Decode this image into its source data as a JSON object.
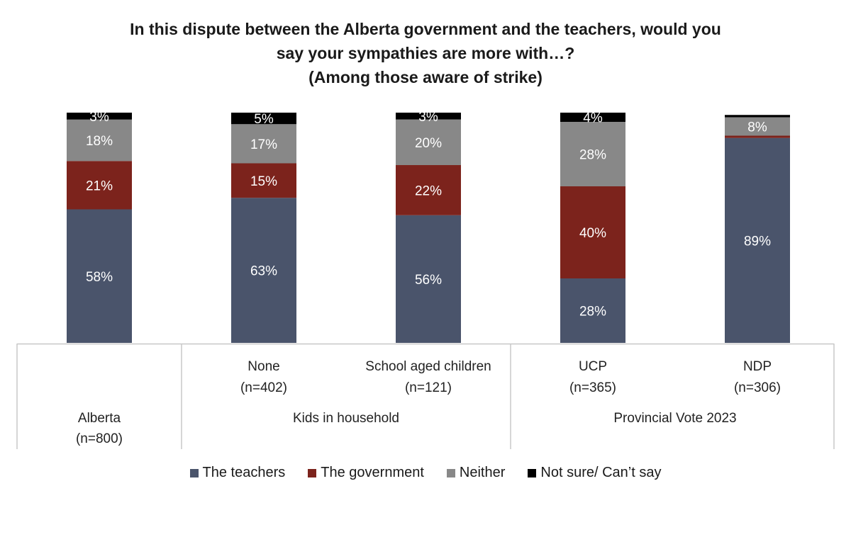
{
  "chart_data": {
    "type": "bar",
    "stacked": true,
    "title_lines": [
      "In this dispute between the Alberta government and the teachers, would you",
      "say your sympathies are more with…?",
      "(Among those aware of strike)"
    ],
    "categories": [
      {
        "label": "Alberta",
        "n": "(n=800)"
      },
      {
        "label": "None",
        "n": "(n=402)"
      },
      {
        "label": "School aged children",
        "n": "(n=121)"
      },
      {
        "label": "UCP",
        "n": "(n=365)"
      },
      {
        "label": "NDP",
        "n": "(n=306)"
      }
    ],
    "groups": [
      {
        "label": "Kids in household",
        "categories": [
          "None",
          "School aged children"
        ]
      },
      {
        "label": "Provincial Vote 2023",
        "categories": [
          "UCP",
          "NDP"
        ]
      }
    ],
    "series": [
      {
        "name": "The teachers",
        "color": "#4a546b",
        "values": [
          58,
          63,
          56,
          28,
          89
        ],
        "labels": [
          "58%",
          "63%",
          "56%",
          "28%",
          "89%"
        ]
      },
      {
        "name": "The government",
        "color": "#7c231c",
        "values": [
          21,
          15,
          22,
          40,
          1
        ],
        "labels": [
          "21%",
          "15%",
          "22%",
          "40%",
          ""
        ]
      },
      {
        "name": "Neither",
        "color": "#888888",
        "values": [
          18,
          17,
          20,
          28,
          8
        ],
        "labels": [
          "18%",
          "17%",
          "20%",
          "28%",
          "8%"
        ]
      },
      {
        "name": "Not sure/ Can’t say",
        "color": "#000000",
        "values": [
          3,
          5,
          3,
          4,
          1
        ],
        "labels": [
          "3%",
          "5%",
          "3%",
          "4%",
          ""
        ]
      }
    ],
    "ylim": [
      0,
      100
    ],
    "legend_position": "bottom"
  }
}
